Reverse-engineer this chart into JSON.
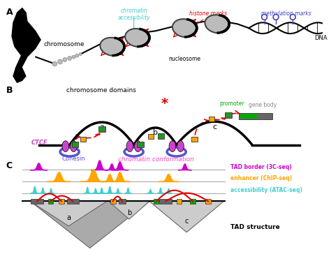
{
  "bg_color": "#ffffff",
  "label_A": "A",
  "label_B": "B",
  "label_C": "C",
  "chromosome_label": "chromosome",
  "chromatin_accessibility_label": "chromatin\naccessibility",
  "histone_marks_label": "histone marks",
  "methylation_marks_label": "methylation marks",
  "nucleosome_label": "nucleosome",
  "dna_label": "DNA",
  "chromosome_domains_label": "chromosome domains",
  "ctcf_label": "CTCF",
  "cohesin_label": "Cohesin",
  "chromatin_conformation_label": "chromatin conformation",
  "promoter_label": "promoter",
  "gene_body_label": "gene body",
  "tad_border_label": "TAD border (3C-seq)",
  "enhancer_label": "enhancer (ChIP-seq)",
  "accessibility_label": "accessibility (ATAC-seq)",
  "tad_structure_label": "TAD structure",
  "loop_a_label": "a",
  "loop_b_label": "b",
  "loop_c_label": "c",
  "color_magenta": "#CC00CC",
  "color_orange": "#FFA500",
  "color_cyan": "#44CCCC",
  "color_red": "#DD0000",
  "color_green": "#00AA00",
  "color_blue_label": "#4444BB",
  "color_gray_nucleosome": "#BBBBBB",
  "color_blue_cohesin": "#5555CC",
  "color_purple_ctcf": "#CC44CC",
  "color_pink_chromatin": "#FF44CC",
  "color_dark_gray_element": "#666666",
  "color_light_gray_tad": "#CCCCCC",
  "color_mid_gray_tad": "#AAAAAA"
}
